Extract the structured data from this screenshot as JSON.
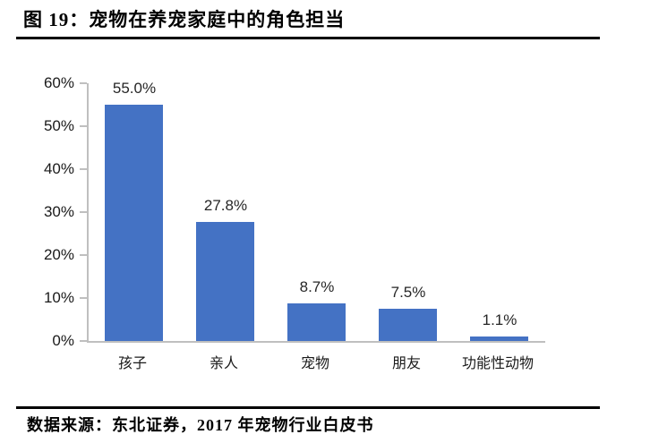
{
  "figure": {
    "title": "图 19：宠物在养宠家庭中的角色担当",
    "source": "数据来源：东北证券，2017 年宠物行业白皮书"
  },
  "chart_data": {
    "type": "bar",
    "categories": [
      "孩子",
      "亲人",
      "宠物",
      "朋友",
      "功能性动物"
    ],
    "values": [
      55.0,
      27.8,
      8.7,
      7.5,
      1.1
    ],
    "data_labels": [
      "55.0%",
      "27.8%",
      "8.7%",
      "7.5%",
      "1.1%"
    ],
    "title": "",
    "xlabel": "",
    "ylabel": "",
    "ylim": [
      0,
      60
    ],
    "ytick_step": 10,
    "ytick_labels": [
      "0%",
      "10%",
      "20%",
      "30%",
      "40%",
      "50%",
      "60%"
    ],
    "grid": false,
    "legend_position": "none",
    "bar_color": "#4472C4",
    "axis_color": "#BFBFBF",
    "value_label_color": "#262626",
    "tick_label_color": "#1a1a1a"
  }
}
